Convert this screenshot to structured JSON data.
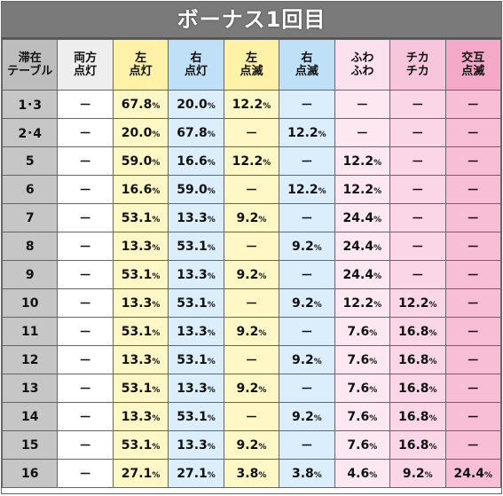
{
  "title": "ボーナス1回目",
  "columns": [
    {
      "line1": "滞在",
      "line2": "テーブル"
    },
    {
      "line1": "両方",
      "line2": "点灯"
    },
    {
      "line1": "左",
      "line2": "点灯"
    },
    {
      "line1": "右",
      "line2": "点灯"
    },
    {
      "line1": "左",
      "line2": "点滅"
    },
    {
      "line1": "右",
      "line2": "点滅"
    },
    {
      "line1": "ふわ",
      "line2": "ふわ"
    },
    {
      "line1": "チカ",
      "line2": "チカ"
    },
    {
      "line1": "交互",
      "line2": "点滅"
    }
  ],
  "rows": [
    [
      "1･3",
      "－",
      "67.8",
      "20.0",
      "12.2",
      "－",
      "－",
      "－",
      "－"
    ],
    [
      "2･4",
      "－",
      "20.0",
      "67.8",
      "－",
      "12.2",
      "－",
      "－",
      "－"
    ],
    [
      "5",
      "－",
      "59.0",
      "16.6",
      "12.2",
      "－",
      "12.2",
      "－",
      "－"
    ],
    [
      "6",
      "－",
      "16.6",
      "59.0",
      "－",
      "12.2",
      "12.2",
      "－",
      "－"
    ],
    [
      "7",
      "－",
      "53.1",
      "13.3",
      "9.2",
      "－",
      "24.4",
      "－",
      "－"
    ],
    [
      "8",
      "－",
      "13.3",
      "53.1",
      "－",
      "9.2",
      "24.4",
      "－",
      "－"
    ],
    [
      "9",
      "－",
      "53.1",
      "13.3",
      "9.2",
      "－",
      "24.4",
      "－",
      "－"
    ],
    [
      "10",
      "－",
      "13.3",
      "53.1",
      "－",
      "9.2",
      "12.2",
      "12.2",
      "－"
    ],
    [
      "11",
      "－",
      "53.1",
      "13.3",
      "9.2",
      "－",
      "7.6",
      "16.8",
      "－"
    ],
    [
      "12",
      "－",
      "13.3",
      "53.1",
      "－",
      "9.2",
      "7.6",
      "16.8",
      "－"
    ],
    [
      "13",
      "－",
      "53.1",
      "13.3",
      "9.2",
      "－",
      "7.6",
      "16.8",
      "－"
    ],
    [
      "14",
      "－",
      "13.3",
      "53.1",
      "－",
      "9.2",
      "7.6",
      "16.8",
      "－"
    ],
    [
      "15",
      "－",
      "53.1",
      "13.3",
      "9.2",
      "－",
      "7.6",
      "16.8",
      "－"
    ],
    [
      "16",
      "－",
      "27.1",
      "27.1",
      "3.8",
      "3.8",
      "4.6",
      "9.2",
      "24.4"
    ]
  ],
  "unit": "%",
  "colors": {
    "header_bar": "#7a7a7a",
    "table_col": "#c6c6c6",
    "yellow": "#fff7c5",
    "blue": "#dceefb",
    "pink_light": "#fde8f2",
    "pink_mid": "#fbd6e6",
    "pink_dark": "#f8bed6"
  }
}
